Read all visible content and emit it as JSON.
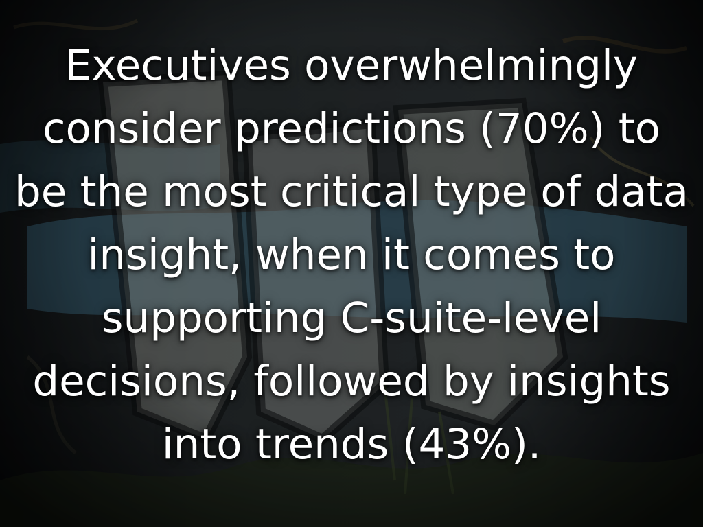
{
  "slide": {
    "text": "Executives overwhelmingly consider predictions (70%) to be the most critical type of data insight, when it comes to supporting C-suite-level decisions, followed by insights into trends (43%)."
  },
  "background": {
    "description_icon": "graffiti-wall-photo-icon",
    "colors": {
      "base": "#202426",
      "blue_paint": "#3f6f86",
      "white_paint": "#b9bcb6",
      "dark_outline": "#0d0f10",
      "foliage": "#26301f"
    }
  }
}
